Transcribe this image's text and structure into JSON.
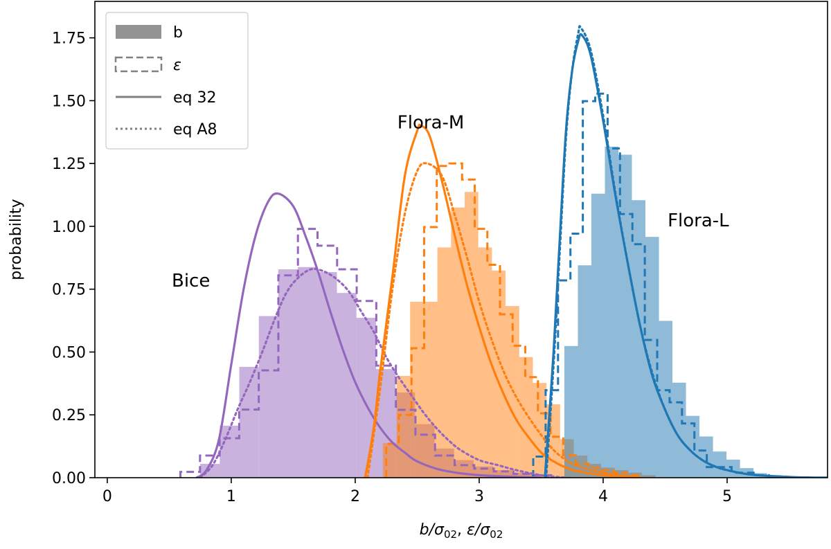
{
  "chart_data": {
    "type": "histogram+line",
    "xlabel": {
      "main": "b/σ",
      "sub": "02",
      "sep": ", ",
      "main2": "ε/σ",
      "sub2": "02"
    },
    "ylabel": "probability",
    "xlim": [
      -0.1,
      5.81
    ],
    "ylim": [
      0,
      1.895
    ],
    "xticks": [
      0,
      1,
      2,
      3,
      4,
      5
    ],
    "xtick_labels": [
      "0",
      "1",
      "2",
      "3",
      "4",
      "5"
    ],
    "yticks": [
      0,
      0.25,
      0.5,
      0.75,
      1.0,
      1.25,
      1.5,
      1.75
    ],
    "ytick_labels": [
      "0.00",
      "0.25",
      "0.50",
      "0.75",
      "1.00",
      "1.25",
      "1.50",
      "1.75"
    ],
    "grid": false,
    "legend": {
      "placement": "top-left",
      "entries": [
        {
          "label": "b",
          "style": "filled"
        },
        {
          "label": "ε",
          "style": "dashed-step"
        },
        {
          "label": "eq 32",
          "style": "solid"
        },
        {
          "label": "eq A8",
          "style": "dotted"
        }
      ],
      "color": "#808080"
    },
    "annotations": [
      {
        "text": "Bice",
        "x": 0.52,
        "y": 0.76
      },
      {
        "text": "Flora-M",
        "x": 2.34,
        "y": 1.39
      },
      {
        "text": "Flora-L",
        "x": 4.52,
        "y": 1.0
      }
    ],
    "groups": [
      {
        "name": "Bice",
        "color": "#9467bd",
        "b_hist": {
          "start": 0.75,
          "width": 0.1575,
          "values": [
            0.055,
            0.207,
            0.441,
            0.643,
            0.829,
            0.838,
            0.818,
            0.735,
            0.636,
            0.432,
            0.339,
            0.213,
            0.116,
            0.07,
            0.045,
            0.03,
            0.02,
            0.01,
            0.005
          ]
        },
        "eps_hist": {
          "start": 0.59,
          "width": 0.158,
          "values": [
            0.023,
            0.088,
            0.157,
            0.271,
            0.427,
            0.805,
            0.99,
            0.923,
            0.829,
            0.703,
            0.446,
            0.27,
            0.171,
            0.088,
            0.05,
            0.036,
            0.025,
            0.015,
            0.01
          ]
        },
        "eq32": {
          "x": [
            0.72,
            0.8,
            0.9,
            1.0,
            1.1,
            1.2,
            1.3,
            1.38,
            1.5,
            1.6,
            1.7,
            1.8,
            1.9,
            2.0,
            2.1,
            2.2,
            2.3,
            2.4,
            2.5,
            2.7,
            3.0,
            3.5
          ],
          "y": [
            0,
            0.03,
            0.15,
            0.45,
            0.75,
            0.97,
            1.1,
            1.13,
            1.08,
            0.96,
            0.82,
            0.66,
            0.51,
            0.38,
            0.28,
            0.2,
            0.14,
            0.1,
            0.065,
            0.03,
            0.01,
            0
          ]
        },
        "eqA8": {
          "x": [
            0.75,
            0.85,
            0.95,
            1.05,
            1.15,
            1.25,
            1.35,
            1.45,
            1.55,
            1.65,
            1.75,
            1.85,
            1.95,
            2.05,
            2.15,
            2.25,
            2.35,
            2.45,
            2.55,
            2.65,
            2.75,
            2.85,
            3.0,
            3.15,
            3.3,
            3.5,
            3.7
          ],
          "y": [
            0,
            0.05,
            0.15,
            0.27,
            0.38,
            0.5,
            0.63,
            0.74,
            0.8,
            0.83,
            0.82,
            0.79,
            0.74,
            0.66,
            0.58,
            0.48,
            0.4,
            0.33,
            0.26,
            0.2,
            0.15,
            0.11,
            0.07,
            0.05,
            0.03,
            0.01,
            0
          ]
        }
      },
      {
        "name": "Flora-M",
        "color": "#ff7f0e",
        "b_hist": {
          "start": 2.223,
          "width": 0.11,
          "values": [
            0.138,
            0.405,
            0.7,
            0.7,
            0.916,
            1.075,
            1.137,
            0.916,
            0.824,
            0.683,
            0.48,
            0.377,
            0.292,
            0.153,
            0.088,
            0.055,
            0.04,
            0.03,
            0.02,
            0.01
          ]
        },
        "eps_hist": {
          "start": 2.25,
          "width": 0.102,
          "values": [
            0.135,
            0.25,
            0.515,
            0.997,
            1.24,
            1.25,
            1.186,
            0.99,
            0.847,
            0.65,
            0.525,
            0.4,
            0.256,
            0.163,
            0.089,
            0.055,
            0.04,
            0.03,
            0.02,
            0.01
          ]
        },
        "eq32": {
          "x": [
            2.08,
            2.15,
            2.2,
            2.3,
            2.4,
            2.5,
            2.53,
            2.6,
            2.7,
            2.8,
            2.9,
            3.0,
            3.1,
            3.2,
            3.3,
            3.4,
            3.5,
            3.6,
            3.7,
            3.8,
            4.0,
            4.3
          ],
          "y": [
            0,
            0.2,
            0.42,
            0.8,
            1.2,
            1.38,
            1.4,
            1.36,
            1.18,
            0.97,
            0.77,
            0.6,
            0.45,
            0.33,
            0.23,
            0.16,
            0.1,
            0.065,
            0.04,
            0.025,
            0.01,
            0
          ]
        },
        "eqA8": {
          "x": [
            2.1,
            2.2,
            2.3,
            2.4,
            2.5,
            2.58,
            2.7,
            2.8,
            2.9,
            3.0,
            3.1,
            3.2,
            3.3,
            3.4,
            3.5,
            3.6,
            3.7,
            3.8,
            4.0,
            4.3
          ],
          "y": [
            0,
            0.35,
            0.75,
            1.05,
            1.22,
            1.25,
            1.2,
            1.05,
            0.88,
            0.7,
            0.55,
            0.42,
            0.32,
            0.24,
            0.17,
            0.11,
            0.07,
            0.045,
            0.02,
            0
          ]
        }
      },
      {
        "name": "Flora-L",
        "color": "#1f77b4",
        "b_hist": {
          "start": 3.687,
          "width": 0.109,
          "values": [
            0.524,
            0.845,
            1.13,
            1.317,
            1.285,
            1.104,
            0.958,
            0.624,
            0.378,
            0.246,
            0.164,
            0.104,
            0.072,
            0.038,
            0.018,
            0.01,
            0.006,
            0.004,
            0.003,
            0.005
          ]
        },
        "eps_hist": {
          "start": 3.436,
          "width": 0.1,
          "values": [
            0.084,
            0.348,
            0.785,
            0.971,
            1.498,
            1.528,
            1.31,
            1.049,
            0.929,
            0.548,
            0.348,
            0.3,
            0.216,
            0.108,
            0.042,
            0.042,
            0.02,
            0.02,
            0.01
          ]
        },
        "eq32": {
          "x": [
            3.53,
            3.6,
            3.65,
            3.7,
            3.75,
            3.8,
            3.83,
            3.9,
            4.0,
            4.1,
            4.2,
            4.3,
            4.4,
            4.5,
            4.6,
            4.7,
            4.8,
            4.9,
            5.0,
            5.2,
            5.5,
            5.8
          ],
          "y": [
            0,
            0.5,
            0.95,
            1.38,
            1.62,
            1.74,
            1.76,
            1.68,
            1.42,
            1.12,
            0.85,
            0.6,
            0.4,
            0.27,
            0.17,
            0.11,
            0.07,
            0.045,
            0.03,
            0.012,
            0.003,
            0
          ]
        },
        "eqA8": {
          "x": [
            3.54,
            3.6,
            3.65,
            3.7,
            3.75,
            3.8,
            3.82,
            3.9,
            4.0,
            4.1,
            4.2,
            4.3,
            4.4,
            4.5,
            4.6,
            4.7,
            4.8,
            4.9,
            5.0,
            5.2,
            5.5
          ],
          "y": [
            0,
            0.45,
            0.9,
            1.35,
            1.62,
            1.77,
            1.79,
            1.7,
            1.44,
            1.13,
            0.85,
            0.6,
            0.41,
            0.27,
            0.17,
            0.11,
            0.07,
            0.045,
            0.03,
            0.012,
            0.003
          ]
        }
      }
    ]
  }
}
